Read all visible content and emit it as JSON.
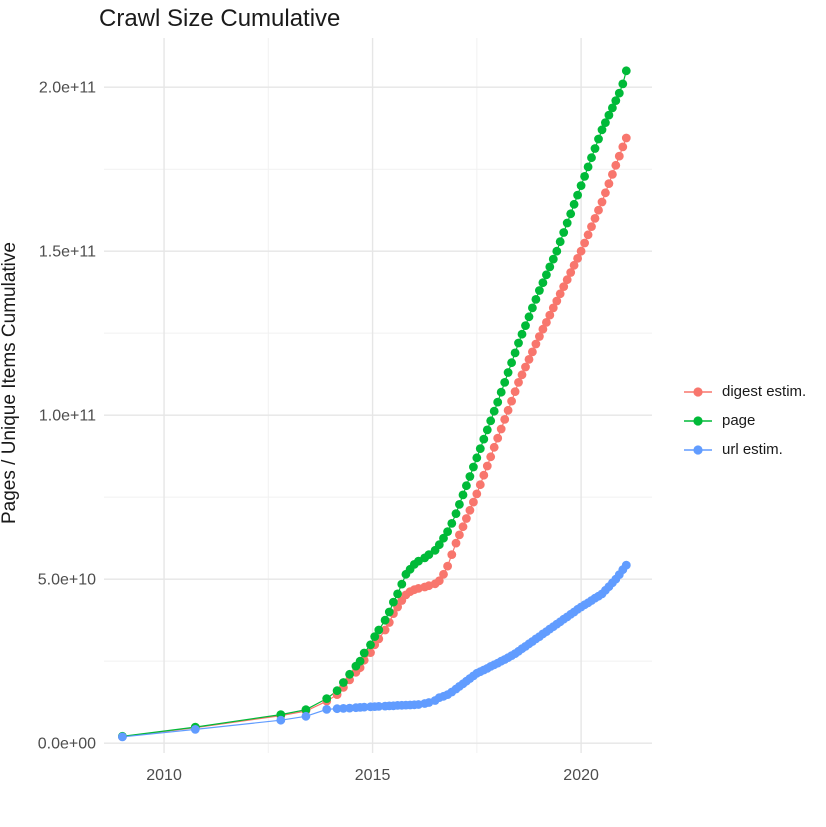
{
  "title": "Crawl Size Cumulative",
  "axes": {
    "y_label": "Pages / Unique Items Cumulative",
    "x_label": "",
    "x_ticks": [
      {
        "value": 2010,
        "label": "2010"
      },
      {
        "value": 2015,
        "label": "2015"
      },
      {
        "value": 2020,
        "label": "2020"
      }
    ],
    "x_minor_ticks": [
      2012.5,
      2017.5
    ],
    "y_ticks": [
      {
        "value": 0,
        "label": "0.0e+00"
      },
      {
        "value": 50,
        "label": "5.0e+10"
      },
      {
        "value": 100,
        "label": "1.0e+11"
      },
      {
        "value": 150,
        "label": "1.5e+11"
      },
      {
        "value": 200,
        "label": "2.0e+11"
      }
    ],
    "y_minor_ticks": [
      25,
      75,
      125,
      175
    ],
    "xlim": [
      2008.56,
      2021.7
    ],
    "ylim_billions": [
      -3,
      215
    ]
  },
  "colors": {
    "digest": "#F8766D",
    "page": "#00BA38",
    "url": "#619CFF",
    "grid_major": "#E6E6E6",
    "grid_minor": "#F1F1F1",
    "tick_text": "#4D4D4D",
    "background": "#FFFFFF"
  },
  "legend": {
    "items": [
      {
        "label": "digest estim.",
        "color": "#F8766D"
      },
      {
        "label": "page",
        "color": "#00BA38"
      },
      {
        "label": "url estim.",
        "color": "#619CFF"
      }
    ]
  },
  "chart_data": {
    "type": "line",
    "title": "Crawl Size Cumulative",
    "xlabel": "",
    "ylabel": "Pages / Unique Items Cumulative",
    "x_unit": "decimal year",
    "y_unit": "billions of pages / unique items (1e9)",
    "xlim": [
      2008.56,
      2021.7
    ],
    "ylim": [
      -3,
      215
    ],
    "grid": true,
    "legend_position": "right",
    "series": [
      {
        "name": "digest estim.",
        "color": "#F8766D",
        "points": [
          [
            2009,
            2
          ],
          [
            2010.75,
            4.7
          ],
          [
            2012.8,
            8.4
          ],
          [
            2013.4,
            9.8
          ],
          [
            2013.9,
            12.8
          ],
          [
            2014.15,
            14.8
          ],
          [
            2014.3,
            17
          ],
          [
            2014.45,
            19.3
          ],
          [
            2014.6,
            21.6
          ],
          [
            2014.7,
            23
          ],
          [
            2014.8,
            25.3
          ],
          [
            2014.95,
            27.6
          ],
          [
            2015.05,
            30
          ],
          [
            2015.15,
            31.8
          ],
          [
            2015.3,
            34.5
          ],
          [
            2015.4,
            36.8
          ],
          [
            2015.5,
            39.5
          ],
          [
            2015.6,
            41.5
          ],
          [
            2015.7,
            43.5
          ],
          [
            2015.8,
            45.2
          ],
          [
            2015.9,
            46.2
          ],
          [
            2016,
            46.8
          ],
          [
            2016.1,
            47.2
          ],
          [
            2016.25,
            47.6
          ],
          [
            2016.35,
            48
          ],
          [
            2016.5,
            48.6
          ],
          [
            2016.6,
            49.5
          ],
          [
            2016.7,
            51.5
          ],
          [
            2016.8,
            54
          ],
          [
            2016.9,
            57.5
          ],
          [
            2017,
            61
          ],
          [
            2017.083,
            63.5
          ],
          [
            2017.167,
            66
          ],
          [
            2017.25,
            68.5
          ],
          [
            2017.333,
            71
          ],
          [
            2017.417,
            73.5
          ],
          [
            2017.5,
            76
          ],
          [
            2017.583,
            78.8
          ],
          [
            2017.667,
            81.7
          ],
          [
            2017.75,
            84.5
          ],
          [
            2017.833,
            87.3
          ],
          [
            2017.917,
            90.2
          ],
          [
            2018,
            93
          ],
          [
            2018.083,
            95.8
          ],
          [
            2018.167,
            98.7
          ],
          [
            2018.25,
            101.5
          ],
          [
            2018.333,
            104.3
          ],
          [
            2018.417,
            107.2
          ],
          [
            2018.5,
            110
          ],
          [
            2018.583,
            112.3
          ],
          [
            2018.667,
            114.7
          ],
          [
            2018.75,
            117
          ],
          [
            2018.833,
            119.3
          ],
          [
            2018.917,
            121.7
          ],
          [
            2019,
            124
          ],
          [
            2019.083,
            126.2
          ],
          [
            2019.167,
            128.3
          ],
          [
            2019.25,
            130.5
          ],
          [
            2019.333,
            132.7
          ],
          [
            2019.417,
            134.8
          ],
          [
            2019.5,
            137
          ],
          [
            2019.583,
            139.2
          ],
          [
            2019.667,
            141.3
          ],
          [
            2019.75,
            143.5
          ],
          [
            2019.833,
            145.7
          ],
          [
            2019.917,
            147.8
          ],
          [
            2020,
            150
          ],
          [
            2020.083,
            152.5
          ],
          [
            2020.167,
            155
          ],
          [
            2020.25,
            157.5
          ],
          [
            2020.333,
            160
          ],
          [
            2020.417,
            162.5
          ],
          [
            2020.5,
            165
          ],
          [
            2020.583,
            167.8
          ],
          [
            2020.667,
            170.6
          ],
          [
            2020.75,
            173.4
          ],
          [
            2020.833,
            176.2
          ],
          [
            2020.917,
            179
          ],
          [
            2021,
            181.8
          ],
          [
            2021.083,
            184.5
          ]
        ]
      },
      {
        "name": "page",
        "color": "#00BA38",
        "points": [
          [
            2009,
            2.1
          ],
          [
            2010.75,
            4.9
          ],
          [
            2012.8,
            8.7
          ],
          [
            2013.4,
            10.2
          ],
          [
            2013.9,
            13.6
          ],
          [
            2014.15,
            16
          ],
          [
            2014.3,
            18.5
          ],
          [
            2014.45,
            21
          ],
          [
            2014.6,
            23.5
          ],
          [
            2014.7,
            25
          ],
          [
            2014.8,
            27.5
          ],
          [
            2014.95,
            30
          ],
          [
            2015.05,
            32.5
          ],
          [
            2015.15,
            34.5
          ],
          [
            2015.3,
            37.5
          ],
          [
            2015.4,
            40
          ],
          [
            2015.5,
            43
          ],
          [
            2015.6,
            45.5
          ],
          [
            2015.7,
            48.5
          ],
          [
            2015.8,
            51.5
          ],
          [
            2015.9,
            53
          ],
          [
            2016,
            54.5
          ],
          [
            2016.1,
            55.5
          ],
          [
            2016.25,
            56.5
          ],
          [
            2016.35,
            57.5
          ],
          [
            2016.5,
            58.8
          ],
          [
            2016.6,
            60.5
          ],
          [
            2016.7,
            62.5
          ],
          [
            2016.8,
            64.5
          ],
          [
            2016.9,
            67
          ],
          [
            2017,
            70
          ],
          [
            2017.083,
            72.8
          ],
          [
            2017.167,
            75.7
          ],
          [
            2017.25,
            78.5
          ],
          [
            2017.333,
            81.3
          ],
          [
            2017.417,
            84.2
          ],
          [
            2017.5,
            87
          ],
          [
            2017.583,
            89.8
          ],
          [
            2017.667,
            92.7
          ],
          [
            2017.75,
            95.5
          ],
          [
            2017.833,
            98.3
          ],
          [
            2017.917,
            101.2
          ],
          [
            2018,
            104
          ],
          [
            2018.083,
            107
          ],
          [
            2018.167,
            110
          ],
          [
            2018.25,
            113
          ],
          [
            2018.333,
            116
          ],
          [
            2018.417,
            119
          ],
          [
            2018.5,
            122
          ],
          [
            2018.583,
            124.7
          ],
          [
            2018.667,
            127.3
          ],
          [
            2018.75,
            130
          ],
          [
            2018.833,
            132.7
          ],
          [
            2018.917,
            135.3
          ],
          [
            2019,
            138
          ],
          [
            2019.083,
            140.4
          ],
          [
            2019.167,
            142.8
          ],
          [
            2019.25,
            145.2
          ],
          [
            2019.333,
            147.6
          ],
          [
            2019.417,
            150
          ],
          [
            2019.5,
            152.9
          ],
          [
            2019.583,
            155.7
          ],
          [
            2019.667,
            158.6
          ],
          [
            2019.75,
            161.4
          ],
          [
            2019.833,
            164.3
          ],
          [
            2019.917,
            167.1
          ],
          [
            2020,
            170
          ],
          [
            2020.083,
            172.8
          ],
          [
            2020.167,
            175.7
          ],
          [
            2020.25,
            178.5
          ],
          [
            2020.333,
            181.3
          ],
          [
            2020.417,
            184.2
          ],
          [
            2020.5,
            187
          ],
          [
            2020.583,
            189.2
          ],
          [
            2020.667,
            191.5
          ],
          [
            2020.75,
            193.7
          ],
          [
            2020.833,
            195.9
          ],
          [
            2020.917,
            198.2
          ],
          [
            2021,
            201
          ],
          [
            2021.083,
            205
          ]
        ]
      },
      {
        "name": "url estim.",
        "color": "#619CFF",
        "points": [
          [
            2009,
            1.9
          ],
          [
            2010.75,
            4.2
          ],
          [
            2012.8,
            7
          ],
          [
            2013.4,
            8.2
          ],
          [
            2013.9,
            10.3
          ],
          [
            2014.15,
            10.5
          ],
          [
            2014.3,
            10.6
          ],
          [
            2014.45,
            10.7
          ],
          [
            2014.6,
            10.8
          ],
          [
            2014.7,
            10.9
          ],
          [
            2014.8,
            11
          ],
          [
            2014.95,
            11.1
          ],
          [
            2015.05,
            11.15
          ],
          [
            2015.15,
            11.2
          ],
          [
            2015.3,
            11.3
          ],
          [
            2015.4,
            11.35
          ],
          [
            2015.5,
            11.4
          ],
          [
            2015.6,
            11.5
          ],
          [
            2015.7,
            11.55
          ],
          [
            2015.8,
            11.6
          ],
          [
            2015.9,
            11.65
          ],
          [
            2016,
            11.7
          ],
          [
            2016.1,
            11.8
          ],
          [
            2016.25,
            12.1
          ],
          [
            2016.35,
            12.4
          ],
          [
            2016.5,
            13
          ],
          [
            2016.6,
            13.9
          ],
          [
            2016.7,
            14.3
          ],
          [
            2016.8,
            14.8
          ],
          [
            2016.9,
            15.6
          ],
          [
            2017,
            16.5
          ],
          [
            2017.083,
            17.3
          ],
          [
            2017.167,
            18.1
          ],
          [
            2017.25,
            18.9
          ],
          [
            2017.333,
            19.7
          ],
          [
            2017.417,
            20.5
          ],
          [
            2017.5,
            21.3
          ],
          [
            2017.583,
            21.8
          ],
          [
            2017.667,
            22.3
          ],
          [
            2017.75,
            22.8
          ],
          [
            2017.833,
            23.4
          ],
          [
            2017.917,
            23.9
          ],
          [
            2018,
            24.4
          ],
          [
            2018.083,
            25
          ],
          [
            2018.167,
            25.5
          ],
          [
            2018.25,
            26.1
          ],
          [
            2018.333,
            26.7
          ],
          [
            2018.417,
            27.3
          ],
          [
            2018.5,
            28
          ],
          [
            2018.583,
            28.8
          ],
          [
            2018.667,
            29.5
          ],
          [
            2018.75,
            30.3
          ],
          [
            2018.833,
            31
          ],
          [
            2018.917,
            31.8
          ],
          [
            2019,
            32.5
          ],
          [
            2019.083,
            33.3
          ],
          [
            2019.167,
            34
          ],
          [
            2019.25,
            34.8
          ],
          [
            2019.333,
            35.5
          ],
          [
            2019.417,
            36.3
          ],
          [
            2019.5,
            37
          ],
          [
            2019.583,
            37.8
          ],
          [
            2019.667,
            38.5
          ],
          [
            2019.75,
            39.3
          ],
          [
            2019.833,
            40
          ],
          [
            2019.917,
            40.8
          ],
          [
            2020,
            41.5
          ],
          [
            2020.083,
            42.2
          ],
          [
            2020.167,
            42.8
          ],
          [
            2020.25,
            43.5
          ],
          [
            2020.333,
            44.2
          ],
          [
            2020.417,
            44.8
          ],
          [
            2020.5,
            45.5
          ],
          [
            2020.583,
            46.6
          ],
          [
            2020.667,
            47.7
          ],
          [
            2020.75,
            48.9
          ],
          [
            2020.833,
            50
          ],
          [
            2020.917,
            51.4
          ],
          [
            2021,
            52.9
          ],
          [
            2021.083,
            54.3
          ]
        ]
      }
    ]
  }
}
